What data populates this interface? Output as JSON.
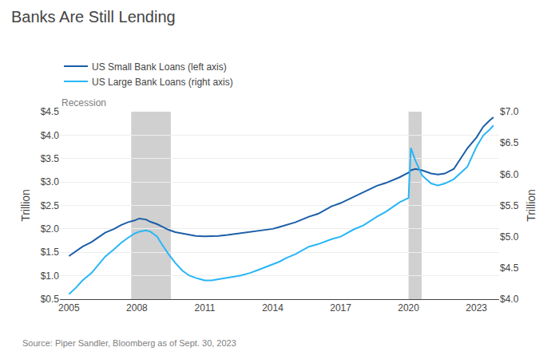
{
  "chart_data": {
    "type": "line",
    "title": "Banks Are Still Lending",
    "source": "Source: Piper Sandler, Bloomberg as of Sept. 30, 2023",
    "annotations": [
      "Recession"
    ],
    "ylabel": "Trillion",
    "y2label": "Trillion",
    "x": [
      2005.0,
      2005.3,
      2005.6,
      2006.0,
      2006.3,
      2006.6,
      2007.0,
      2007.3,
      2007.6,
      2007.9,
      2008.1,
      2008.4,
      2008.6,
      2008.9,
      2009.1,
      2009.4,
      2009.7,
      2010.0,
      2010.3,
      2010.6,
      2011.0,
      2011.3,
      2011.6,
      2012.0,
      2012.3,
      2012.6,
      2013.0,
      2013.3,
      2013.6,
      2014.0,
      2014.3,
      2014.6,
      2015.0,
      2015.3,
      2015.6,
      2016.0,
      2016.3,
      2016.6,
      2017.0,
      2017.3,
      2017.6,
      2018.0,
      2018.3,
      2018.6,
      2019.0,
      2019.3,
      2019.6,
      2020.0,
      2020.1,
      2020.3,
      2020.6,
      2021.0,
      2021.3,
      2021.6,
      2022.0,
      2022.3,
      2022.6,
      2023.0,
      2023.3,
      2023.6,
      2023.75
    ],
    "series": [
      {
        "name": "US Small Bank Loans (left axis)",
        "color": "#1a5ea8",
        "values": [
          1.42,
          1.52,
          1.62,
          1.72,
          1.82,
          1.92,
          2.0,
          2.08,
          2.14,
          2.18,
          2.22,
          2.2,
          2.15,
          2.1,
          2.05,
          1.98,
          1.93,
          1.9,
          1.88,
          1.85,
          1.84,
          1.84,
          1.85,
          1.87,
          1.89,
          1.91,
          1.93,
          1.96,
          1.98,
          2.0,
          2.04,
          2.08,
          2.14,
          2.2,
          2.26,
          2.32,
          2.4,
          2.48,
          2.55,
          2.62,
          2.7,
          2.78,
          2.86,
          2.92,
          2.98,
          3.04,
          3.1,
          3.2,
          3.25,
          3.28,
          3.25,
          3.18,
          3.16,
          3.18,
          3.28,
          3.5,
          3.72,
          3.95,
          4.18,
          4.32,
          4.38
        ]
      },
      {
        "name": "US Large Bank Loans (right axis)",
        "color": "#29b6f6",
        "axis": "y2",
        "values": [
          4.08,
          4.18,
          4.3,
          4.42,
          4.55,
          4.68,
          4.8,
          4.9,
          4.98,
          5.05,
          5.08,
          5.1,
          5.08,
          5.0,
          4.88,
          4.72,
          4.58,
          4.46,
          4.38,
          4.34,
          4.3,
          4.3,
          4.32,
          4.34,
          4.36,
          4.38,
          4.42,
          4.46,
          4.5,
          4.55,
          4.6,
          4.66,
          4.72,
          4.78,
          4.84,
          4.88,
          4.92,
          4.96,
          5.0,
          5.06,
          5.12,
          5.18,
          5.25,
          5.32,
          5.4,
          5.48,
          5.55,
          5.62,
          6.42,
          6.22,
          5.98,
          5.85,
          5.82,
          5.85,
          5.92,
          6.02,
          6.12,
          6.44,
          6.62,
          6.72,
          6.78
        ]
      }
    ],
    "bands": {
      "color": "#aaaaaa",
      "x": [
        [
          2007.75,
          2009.5
        ],
        [
          2020.0,
          2020.58
        ]
      ]
    },
    "xlim": [
      2004.6,
      2024.0
    ],
    "xticks": [
      2005,
      2008,
      2011,
      2014,
      2017,
      2020,
      2023
    ],
    "ylim": [
      0.5,
      4.5
    ],
    "yticks": [
      {
        "value": 0.5,
        "label": "$0.5"
      },
      {
        "value": 1.0,
        "label": "$1.0"
      },
      {
        "value": 1.5,
        "label": "$1.5"
      },
      {
        "value": 2.0,
        "label": "$2.0"
      },
      {
        "value": 2.5,
        "label": "$2.5"
      },
      {
        "value": 3.0,
        "label": "$3.0"
      },
      {
        "value": 3.5,
        "label": "$3.5"
      },
      {
        "value": 4.0,
        "label": "$4.0"
      },
      {
        "value": 4.5,
        "label": "$4.5"
      }
    ],
    "y2lim": [
      4.0,
      7.0
    ],
    "y2ticks": [
      {
        "value": 4.0,
        "label": "$4.0"
      },
      {
        "value": 4.5,
        "label": "$4.5"
      },
      {
        "value": 5.0,
        "label": "$5.0"
      },
      {
        "value": 5.5,
        "label": "$5.5"
      },
      {
        "value": 6.0,
        "label": "$6.0"
      },
      {
        "value": 6.5,
        "label": "$6.5"
      },
      {
        "value": 7.0,
        "label": "$7.0"
      }
    ],
    "grid": true,
    "legend": "top left"
  }
}
